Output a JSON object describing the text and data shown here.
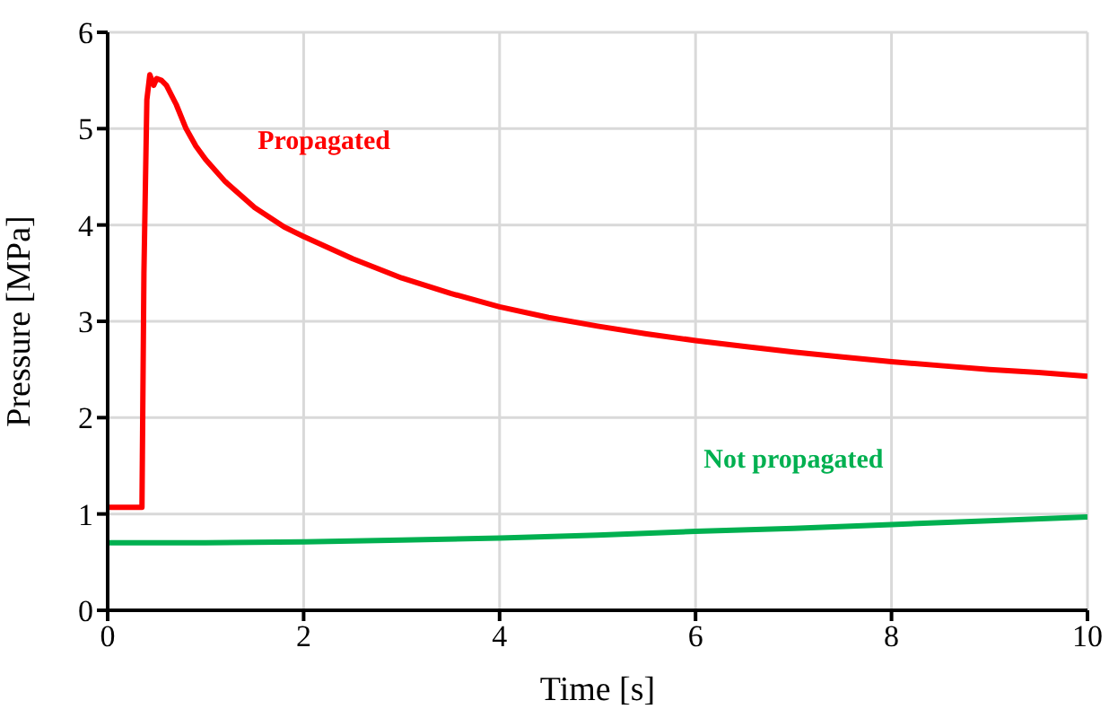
{
  "chart_data": {
    "type": "line",
    "xlabel": "Time [s]",
    "ylabel": "Pressure [MPa]",
    "xlim": [
      0,
      10
    ],
    "xticks": [
      0,
      2,
      4,
      6,
      8,
      10
    ],
    "ylim": [
      0,
      6
    ],
    "yticks": [
      0,
      1,
      2,
      3,
      4,
      5,
      6
    ],
    "grid": true,
    "legend": false,
    "marker": "none",
    "line_style": "solid",
    "series": [
      {
        "name": "Propagated",
        "color": "#ff0000",
        "x": [
          0,
          0.35,
          0.37,
          0.4,
          0.43,
          0.47,
          0.5,
          0.55,
          0.6,
          0.65,
          0.7,
          0.8,
          0.9,
          1.0,
          1.2,
          1.5,
          1.8,
          2,
          2.5,
          3,
          3.5,
          4,
          4.5,
          5,
          5.5,
          6,
          6.5,
          7,
          7.5,
          8,
          8.5,
          9,
          9.5,
          10
        ],
        "values": [
          1.07,
          1.07,
          3.5,
          5.3,
          5.56,
          5.45,
          5.52,
          5.5,
          5.45,
          5.35,
          5.25,
          5.0,
          4.82,
          4.68,
          4.45,
          4.18,
          3.98,
          3.88,
          3.65,
          3.45,
          3.29,
          3.15,
          3.04,
          2.95,
          2.87,
          2.8,
          2.74,
          2.68,
          2.63,
          2.58,
          2.54,
          2.5,
          2.47,
          2.43
        ]
      },
      {
        "name": "Not propagated",
        "color": "#00b050",
        "x": [
          0,
          1,
          2,
          3,
          4,
          5,
          6,
          7,
          8,
          9,
          10
        ],
        "values": [
          0.7,
          0.7,
          0.71,
          0.73,
          0.75,
          0.78,
          0.82,
          0.85,
          0.89,
          0.93,
          0.97
        ]
      }
    ]
  }
}
